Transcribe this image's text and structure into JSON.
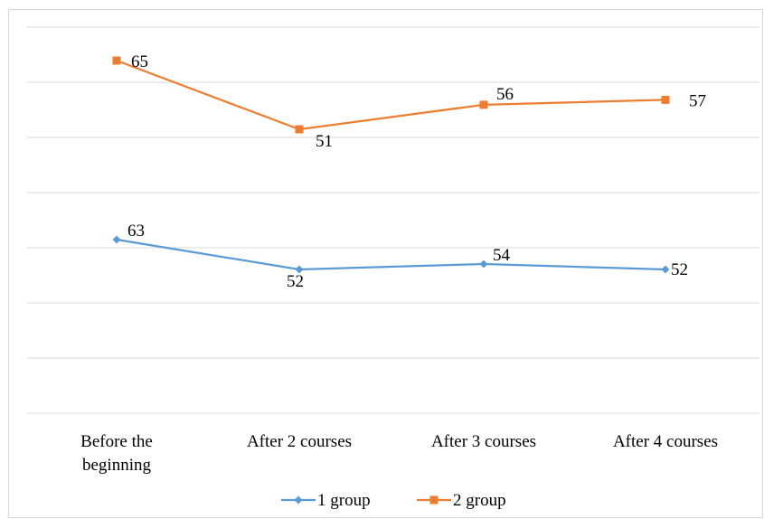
{
  "chart_data": {
    "type": "line",
    "categories": [
      "Before the beginning",
      "After 2 courses",
      "After 3 courses",
      "After 4 courses"
    ],
    "category_lines": [
      [
        "Before the",
        "beginning"
      ],
      [
        "After 2 courses"
      ],
      [
        "After 3 courses"
      ],
      [
        "After 4 courses"
      ]
    ],
    "series": [
      {
        "name": "1 group",
        "values": [
          63,
          52,
          54,
          52
        ],
        "color": "#5b9bd5",
        "marker": "diamond"
      },
      {
        "name": "2 group",
        "values": [
          65,
          51,
          56,
          57
        ],
        "color": "#ed7d31",
        "marker": "square"
      }
    ],
    "title": "",
    "xlabel": "",
    "ylabel": "",
    "grid": true,
    "legend": "bottom"
  }
}
